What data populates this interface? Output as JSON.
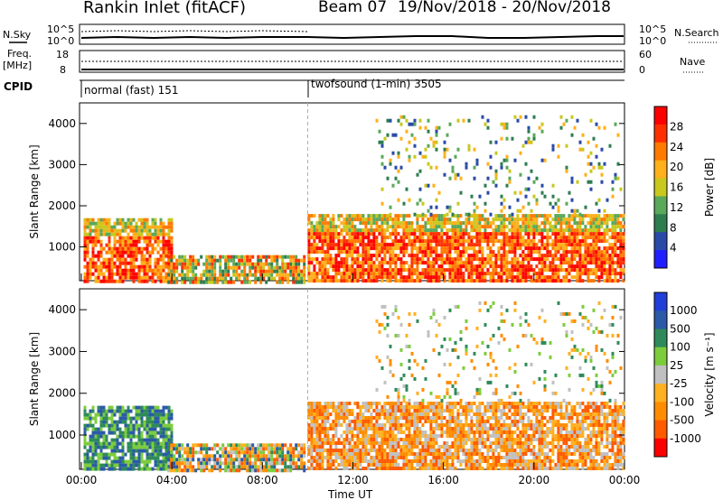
{
  "header": {
    "radar_title": "Rankin Inlet (fitACF)",
    "beam_label": "Beam 07",
    "date_range": "19/Nov/2018 - 20/Nov/2018"
  },
  "aux_panels": {
    "sky_label": "N.Sky",
    "sky_ticks": [
      "10^5",
      "10^0"
    ],
    "search_label": "N.Search",
    "search_ticks": [
      "10^5",
      "10^0"
    ],
    "freq_label_1": "Freq.",
    "freq_label_2": "[MHz]",
    "freq_ticks": [
      "18",
      "8"
    ],
    "nave_label": "Nave",
    "nave_ticks": [
      "60",
      "0"
    ],
    "cpid_label": "CPID",
    "cpid_segments": [
      {
        "name": "normal (fast) 151",
        "start_hour": 0,
        "end_hour": 10
      },
      {
        "name": "twofsound (1-min) 3505",
        "start_hour": 10,
        "end_hour": 24
      }
    ]
  },
  "colors": {
    "power_scale": [
      "#1f1fff",
      "#2a4aa8",
      "#2e7d4f",
      "#5aa85a",
      "#c8c81e",
      "#ffb01a",
      "#ff7a00",
      "#ff3000",
      "#ff0000"
    ],
    "velocity_scale": [
      "#ff0000",
      "#ff5a00",
      "#ff8c00",
      "#ffb020",
      "#c0c0c0",
      "#7ccc3c",
      "#2e8a5a",
      "#2a5aa8",
      "#1f3fd8"
    ]
  },
  "chart_data": [
    {
      "type": "heatmap",
      "panel": "power",
      "ylabel": "Slant Range [km]",
      "xlabel": "",
      "x_ticks": [
        "00:00",
        "04:00",
        "08:00",
        "12:00",
        "16:00",
        "20:00",
        "00:00"
      ],
      "y_ticks": [
        "1000",
        "2000",
        "3000",
        "4000"
      ],
      "xlim_hours": [
        0,
        24
      ],
      "ylim_km": [
        180,
        4500
      ],
      "colorbar_label": "Power [dB]",
      "colorbar_ticks": [
        "28",
        "24",
        "20",
        "16",
        "12",
        "8",
        "4"
      ],
      "regions": [
        {
          "h0": 0.1,
          "h1": 4.0,
          "r0": 180,
          "r1": 1700,
          "level": "high"
        },
        {
          "h0": 3.8,
          "h1": 9.8,
          "r0": 180,
          "r1": 800,
          "level": "mid"
        },
        {
          "h0": 10.0,
          "h1": 24.0,
          "r0": 180,
          "r1": 1800,
          "level": "high"
        },
        {
          "h0": 13.0,
          "h1": 23.8,
          "r0": 1800,
          "r1": 4200,
          "level": "sparse"
        }
      ]
    },
    {
      "type": "heatmap",
      "panel": "velocity",
      "ylabel": "Slant Range [km]",
      "xlabel": "Time UT",
      "x_ticks": [
        "00:00",
        "04:00",
        "08:00",
        "12:00",
        "16:00",
        "20:00",
        "00:00"
      ],
      "y_ticks": [
        "1000",
        "2000",
        "3000",
        "4000"
      ],
      "xlim_hours": [
        0,
        24
      ],
      "ylim_km": [
        180,
        4500
      ],
      "colorbar_label": "Velocity [m s⁻¹]",
      "colorbar_ticks": [
        "1000",
        "500",
        "100",
        "25",
        "-25",
        "-100",
        "-500",
        "-1000"
      ],
      "regions": [
        {
          "h0": 0.1,
          "h1": 4.0,
          "r0": 180,
          "r1": 1700,
          "level": "toward"
        },
        {
          "h0": 3.8,
          "h1": 9.8,
          "r0": 180,
          "r1": 800,
          "level": "mixed"
        },
        {
          "h0": 10.0,
          "h1": 24.0,
          "r0": 180,
          "r1": 1800,
          "level": "away"
        },
        {
          "h0": 13.0,
          "h1": 23.8,
          "r0": 1800,
          "r1": 4200,
          "level": "sparse"
        }
      ]
    }
  ]
}
